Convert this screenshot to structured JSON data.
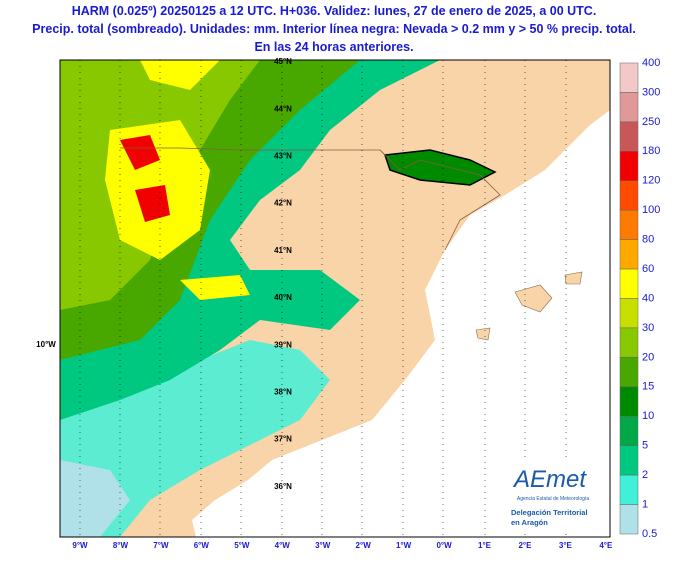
{
  "header": {
    "lines": [
      "HARM (0.025º) 20250125 a 12 UTC. H+036. Validez: lunes, 27 de enero de 2025, a 00 UTC.",
      "Precip. total (sombreado). Unidades: mm. Interior línea negra: Nevada > 0.2 mm y > 50 % precip. total.",
      "En las 24 horas anteriores."
    ]
  },
  "colorbar": {
    "labels": [
      "400",
      "300",
      "250",
      "180",
      "120",
      "100",
      "80",
      "60",
      "40",
      "30",
      "20",
      "15",
      "10",
      "5",
      "2",
      "1",
      "0.5"
    ],
    "colors": [
      "#f2c8c8",
      "#e09898",
      "#c85858",
      "#f00000",
      "#ff4a00",
      "#ff7a00",
      "#ffa800",
      "#ffff00",
      "#c8e000",
      "#88c800",
      "#48a800",
      "#008a00",
      "#00a848",
      "#00c880",
      "#40f0d8",
      "#b0e0e8"
    ]
  },
  "map": {
    "lat_labels": [
      "45°N",
      "44°N",
      "43°N",
      "42°N",
      "41°N",
      "40°N",
      "39°N",
      "38°N",
      "37°N",
      "36°N"
    ],
    "lon_left_label": "10°W",
    "lon_labels": [
      "9°W",
      "8°W",
      "7°W",
      "6°W",
      "5°W",
      "4°W",
      "3°W",
      "2°W",
      "1°W",
      "0°W",
      "1°E",
      "2°E",
      "3°E",
      "4°E"
    ]
  },
  "logo": {
    "brand": "AEmet",
    "agency": "Agencia Estatal de Meteorología",
    "office_line1": "Delegación Territorial",
    "office_line2": "en Aragón"
  }
}
